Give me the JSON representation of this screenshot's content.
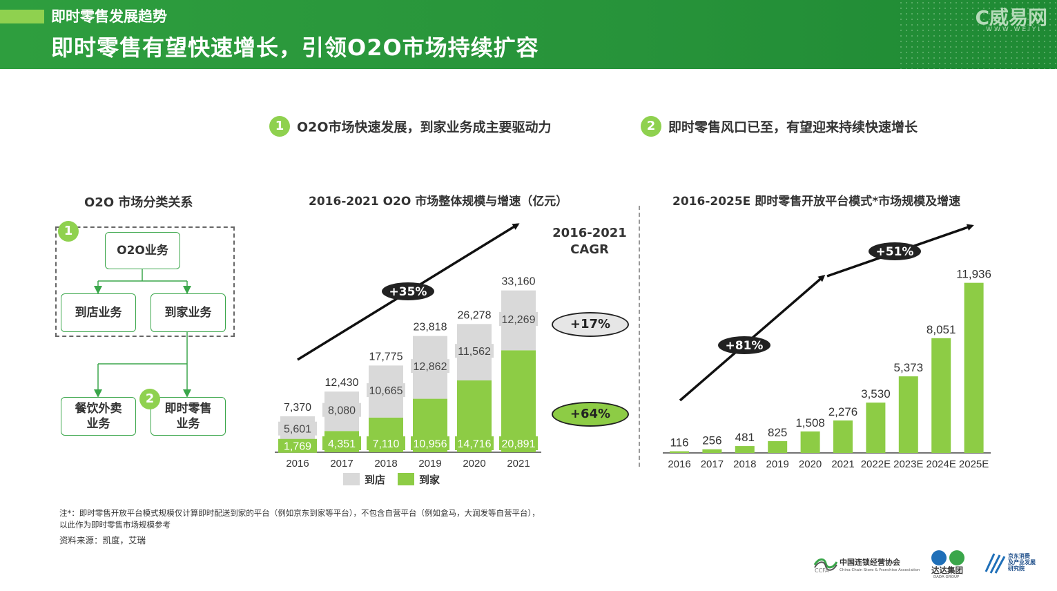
{
  "header": {
    "subtitle": "即时零售发展趋势",
    "title": "即时零售有望快速增长，引领O2O市场持续扩容",
    "brand": "C威易网",
    "brand_sub": "WWW.WEIYI"
  },
  "sections": [
    {
      "num": "1",
      "text": "O2O市场快速发展，到家业务成主要驱动力"
    },
    {
      "num": "2",
      "text": "即时零售风口已至，有望迎来持续快速增长"
    }
  ],
  "diagram": {
    "title": "O2O 市场分类关系",
    "badge1": "1",
    "badge2": "2",
    "nodes": {
      "o2o": "O2O业务",
      "store": "到店业务",
      "home": "到家业务",
      "food": "餐饮外卖\n业务",
      "retail": "即时零售\n业务"
    }
  },
  "cagr": {
    "title_line1": "2016-2021",
    "title_line2": "CAGR",
    "store": "+17%",
    "home": "+64%"
  },
  "chart_data": [
    {
      "type": "bar",
      "stacked": true,
      "title": "2016-2021 O2O 市场整体规模与增速（亿元）",
      "categories": [
        "2016",
        "2017",
        "2018",
        "2019",
        "2020",
        "2021"
      ],
      "series": [
        {
          "name": "到家",
          "values": [
            1769,
            4351,
            7110,
            10956,
            14716,
            20891
          ],
          "color": "#8dcc45"
        },
        {
          "name": "到店",
          "values": [
            5601,
            8080,
            10665,
            12862,
            11562,
            12269
          ],
          "color": "#d9d9d9"
        }
      ],
      "totals": [
        7370,
        12430,
        17775,
        23818,
        26278,
        33160
      ],
      "annotations": [
        {
          "text": "+35%"
        }
      ],
      "legend_position": "bottom",
      "ylim": [
        0,
        35000
      ]
    },
    {
      "type": "bar",
      "title": "2016-2025E 即时零售开放平台模式*市场规模及增速",
      "categories": [
        "2016",
        "2017",
        "2018",
        "2019",
        "2020",
        "2021",
        "2022E",
        "2023E",
        "2024E",
        "2025E"
      ],
      "values": [
        116,
        256,
        481,
        825,
        1508,
        2276,
        3530,
        5373,
        8051,
        11936
      ],
      "color": "#8dcc45",
      "annotations": [
        {
          "text": "+81%"
        },
        {
          "text": "+51%"
        }
      ],
      "ylim": [
        0,
        12500
      ]
    }
  ],
  "footnote": "注*：即时零售开放平台模式规模仅计算即时配送到家的平台（例如京东到家等平台），不包含自营平台（例如盒马，大润发等自营平台），以此作为即时零售市场规模参考",
  "source": "资料来源：凯度，艾瑞",
  "logos": {
    "ccfa": "中国连锁经营协会",
    "ccfa_sub": "China Chain Store & Franchise Association",
    "ccfa_mark": "CCFA",
    "dada": "达达集团",
    "dada_sub": "DADA GROUP",
    "jd": "京东消费\n及产业发展\n研究院"
  }
}
